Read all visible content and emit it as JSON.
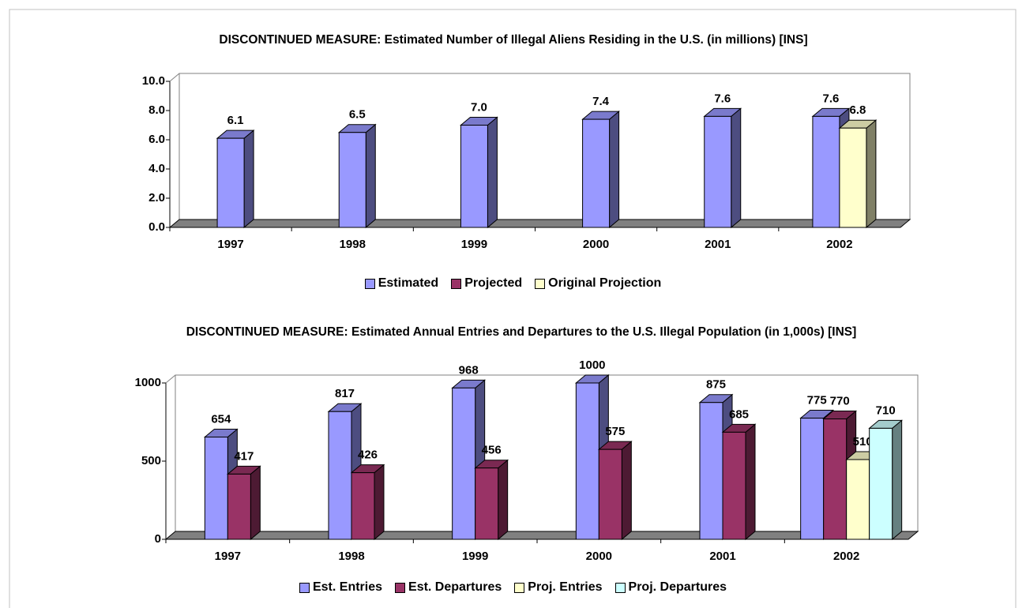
{
  "chart_data": [
    {
      "type": "bar3d",
      "title": "DISCONTINUED MEASURE: Estimated Number of Illegal Aliens Residing in the U.S. (in millions) [INS]",
      "categories": [
        "1997",
        "1998",
        "1999",
        "2000",
        "2001",
        "2002"
      ],
      "series": [
        {
          "name": "Estimated",
          "color": "#9999ff",
          "values": [
            6.1,
            6.5,
            7.0,
            7.4,
            7.6,
            7.6
          ],
          "value_labels": [
            "6.1",
            "6.5",
            "7.0",
            "7.4",
            "7.6",
            "7.6"
          ]
        },
        {
          "name": "Projected",
          "color": "#993366",
          "values": [
            null,
            null,
            null,
            null,
            null,
            null
          ]
        },
        {
          "name": "Original Projection",
          "color": "#ffffcc",
          "values": [
            null,
            null,
            null,
            null,
            null,
            6.8
          ],
          "value_labels": [
            null,
            null,
            null,
            null,
            null,
            "6.8"
          ]
        }
      ],
      "ylim": [
        0,
        10
      ],
      "yticks": [
        {
          "value": 0,
          "label": "0.0"
        },
        {
          "value": 2,
          "label": "2.0"
        },
        {
          "value": 4,
          "label": "4.0"
        },
        {
          "value": 6,
          "label": "6.0"
        },
        {
          "value": 8,
          "label": "8.0"
        },
        {
          "value": 10,
          "label": "10.0"
        }
      ],
      "grid": false,
      "legend": "bottom"
    },
    {
      "type": "bar3d",
      "title": "DISCONTINUED MEASURE: Estimated Annual Entries and Departures to the U.S. Illegal Population (in 1,000s) [INS]",
      "categories": [
        "1997",
        "1998",
        "1999",
        "2000",
        "2001",
        "2002"
      ],
      "series": [
        {
          "name": "Est. Entries",
          "color": "#9999ff",
          "values": [
            654,
            817,
            968,
            1000,
            875,
            775
          ]
        },
        {
          "name": "Est. Departures",
          "color": "#993366",
          "values": [
            417,
            426,
            456,
            575,
            685,
            770
          ]
        },
        {
          "name": "Proj. Entries",
          "color": "#ffffcc",
          "values": [
            null,
            null,
            null,
            null,
            null,
            510
          ]
        },
        {
          "name": "Proj. Departures",
          "color": "#ccffff",
          "values": [
            null,
            null,
            null,
            null,
            null,
            710
          ]
        }
      ],
      "ylim": [
        0,
        1000
      ],
      "yticks": [
        0,
        500,
        1000
      ],
      "grid": false,
      "legend": "bottom"
    }
  ]
}
